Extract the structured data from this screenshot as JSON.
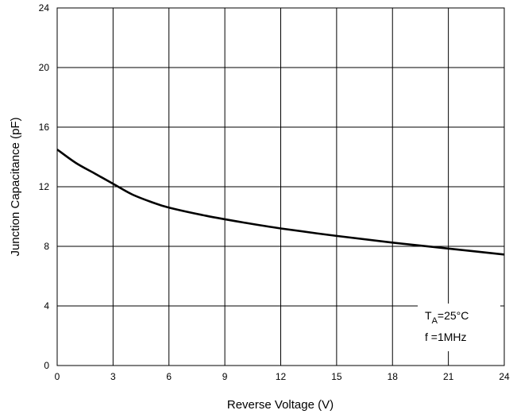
{
  "chart_data": {
    "type": "line",
    "title": "",
    "xlabel": "Reverse Voltage (V)",
    "ylabel": "Junction Capacitance (pF)",
    "xlim": [
      0,
      24
    ],
    "ylim": [
      0,
      24
    ],
    "xticks": [
      0,
      3,
      6,
      9,
      12,
      15,
      18,
      21,
      24
    ],
    "yticks": [
      0,
      4,
      8,
      12,
      16,
      20,
      24
    ],
    "grid": true,
    "series": [
      {
        "x": [
          0,
          1,
          2,
          3,
          4,
          5,
          6,
          8,
          10,
          12,
          15,
          18,
          21,
          24
        ],
        "y": [
          14.5,
          13.6,
          12.9,
          12.2,
          11.5,
          11.0,
          10.6,
          10.05,
          9.6,
          9.2,
          8.7,
          8.25,
          7.85,
          7.45
        ]
      }
    ],
    "annotations": {
      "line1_main": "T",
      "line1_sub": "A",
      "line1_rest": "=25°C",
      "line2": "f =1MHz"
    }
  }
}
